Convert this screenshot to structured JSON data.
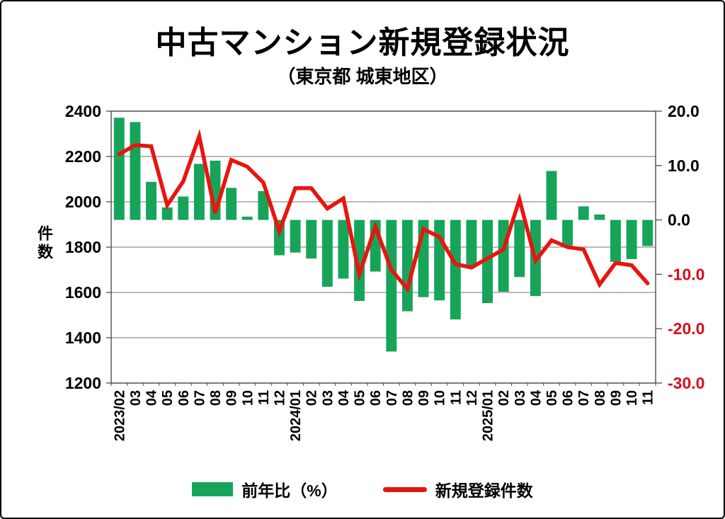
{
  "page": {
    "title": "中古マンション新規登録状況",
    "subtitle": "（東京都 城東地区）"
  },
  "axes": {
    "left_label": "件数"
  },
  "legend": {
    "bar_label": "前年比（%）",
    "line_label": "新規登録件数"
  },
  "colors": {
    "bar": "#17a45a",
    "line": "#e8150f",
    "grid": "#8f8f8f",
    "axis": "#4d4d4d",
    "tick_text": "#000000",
    "tick_text_negative": "#d60f1e",
    "background": "#ffffff"
  },
  "chart_data": {
    "type": "bar",
    "subtype": "combo-bar-line",
    "title": "中古マンション新規登録状況",
    "subtitle": "（東京都 城東地区）",
    "categories": [
      "2023/02",
      "03",
      "04",
      "05",
      "06",
      "07",
      "08",
      "09",
      "10",
      "11",
      "12",
      "2024/01",
      "02",
      "03",
      "04",
      "05",
      "06",
      "07",
      "08",
      "09",
      "10",
      "11",
      "12",
      "2025/01",
      "02",
      "03",
      "04",
      "05",
      "06",
      "07",
      "08",
      "09",
      "10",
      "11"
    ],
    "series": [
      {
        "name": "前年比（%）",
        "type": "bar",
        "axis": "right",
        "color": "#17a45a",
        "values": [
          18.8,
          18.0,
          7.0,
          2.3,
          4.3,
          10.3,
          10.9,
          5.9,
          0.6,
          5.3,
          -6.5,
          -6.0,
          -7.1,
          -12.3,
          -10.8,
          -14.9,
          -9.5,
          -24.2,
          -16.8,
          -14.2,
          -14.8,
          -18.3,
          -8.6,
          -15.3,
          -13.2,
          -10.5,
          -14.0,
          9.0,
          -4.7,
          2.5,
          1.0,
          -7.7,
          -7.2,
          -4.8
        ]
      },
      {
        "name": "新規登録件数",
        "type": "line",
        "axis": "left",
        "color": "#e8150f",
        "values": [
          2210,
          2250,
          2245,
          1985,
          2090,
          2290,
          1950,
          2185,
          2155,
          2085,
          1870,
          2060,
          2060,
          1970,
          2015,
          1680,
          1890,
          1700,
          1615,
          1880,
          1845,
          1725,
          1710,
          1750,
          1790,
          2010,
          1740,
          1830,
          1800,
          1790,
          1635,
          1730,
          1720,
          1640
        ]
      }
    ],
    "left_axis": {
      "label": "件数",
      "min": 1200,
      "max": 2400,
      "step": 200
    },
    "right_axis": {
      "min": -30,
      "max": 20,
      "step": 10
    },
    "grid": true,
    "legend_position": "bottom",
    "xlabel": "",
    "ylabel": "件数"
  }
}
